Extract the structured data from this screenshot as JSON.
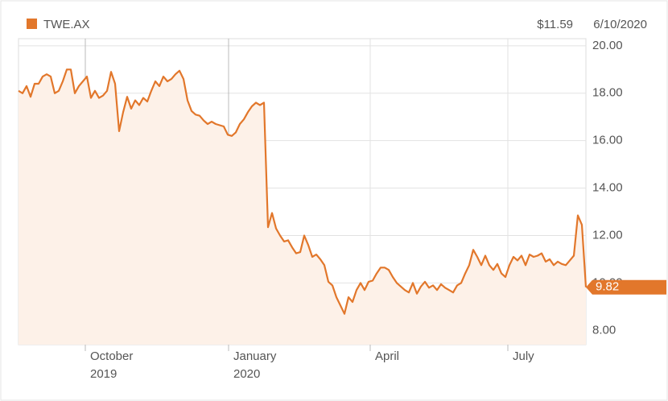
{
  "chart_data": {
    "type": "line",
    "quote": "$11.59",
    "date": "6/10/2020",
    "series": [
      {
        "name": "TWE.AX",
        "color": "#e2772b",
        "fill": "#fdf1e8",
        "values": [
          18.1,
          18.0,
          18.3,
          17.85,
          18.4,
          18.4,
          18.7,
          18.8,
          18.7,
          18.0,
          18.1,
          18.5,
          19.0,
          19.0,
          18.0,
          18.3,
          18.5,
          18.7,
          17.8,
          18.1,
          17.8,
          17.9,
          18.1,
          18.9,
          18.4,
          16.4,
          17.2,
          17.85,
          17.35,
          17.7,
          17.5,
          17.8,
          17.65,
          18.1,
          18.5,
          18.3,
          18.7,
          18.5,
          18.6,
          18.8,
          18.95,
          18.6,
          17.7,
          17.25,
          17.1,
          17.05,
          16.85,
          16.7,
          16.8,
          16.7,
          16.65,
          16.6,
          16.25,
          16.2,
          16.35,
          16.7,
          16.9,
          17.2,
          17.45,
          17.6,
          17.5,
          17.6,
          12.35,
          12.95,
          12.3,
          12.0,
          11.75,
          11.8,
          11.5,
          11.25,
          11.3,
          12.0,
          11.6,
          11.1,
          11.2,
          11.0,
          10.75,
          10.05,
          9.9,
          9.4,
          9.05,
          8.7,
          9.4,
          9.2,
          9.7,
          10.0,
          9.7,
          10.05,
          10.1,
          10.4,
          10.65,
          10.65,
          10.55,
          10.25,
          10.0,
          9.85,
          9.7,
          9.6,
          10.0,
          9.55,
          9.85,
          10.05,
          9.8,
          9.9,
          9.7,
          9.95,
          9.8,
          9.7,
          9.6,
          9.9,
          10.0,
          10.4,
          10.75,
          11.4,
          11.1,
          10.75,
          11.15,
          10.75,
          10.55,
          10.8,
          10.4,
          10.25,
          10.75,
          11.1,
          10.95,
          11.15,
          10.75,
          11.2,
          11.1,
          11.15,
          11.25,
          10.9,
          11.0,
          10.75,
          10.9,
          10.8,
          10.75,
          10.95,
          11.15,
          12.85,
          12.45,
          9.82
        ]
      }
    ],
    "xlim": [
      0,
      141
    ],
    "xticks": [
      {
        "value": 16.6,
        "label": "October",
        "year": "2019"
      },
      {
        "value": 52.2,
        "label": "January",
        "year": "2020"
      },
      {
        "value": 87.4,
        "label": "April"
      },
      {
        "value": 121.6,
        "label": "July"
      }
    ],
    "ylim": [
      7.4,
      20.3
    ],
    "yticks": [
      {
        "value": 8,
        "label": "8.00"
      },
      {
        "value": 10,
        "label": "10.00"
      },
      {
        "value": 12,
        "label": "12.00"
      },
      {
        "value": 14,
        "label": "14.00"
      },
      {
        "value": 16,
        "label": "16.00"
      },
      {
        "value": 18,
        "label": "18.00"
      },
      {
        "value": 20,
        "label": "20.00"
      }
    ],
    "grid": true
  }
}
